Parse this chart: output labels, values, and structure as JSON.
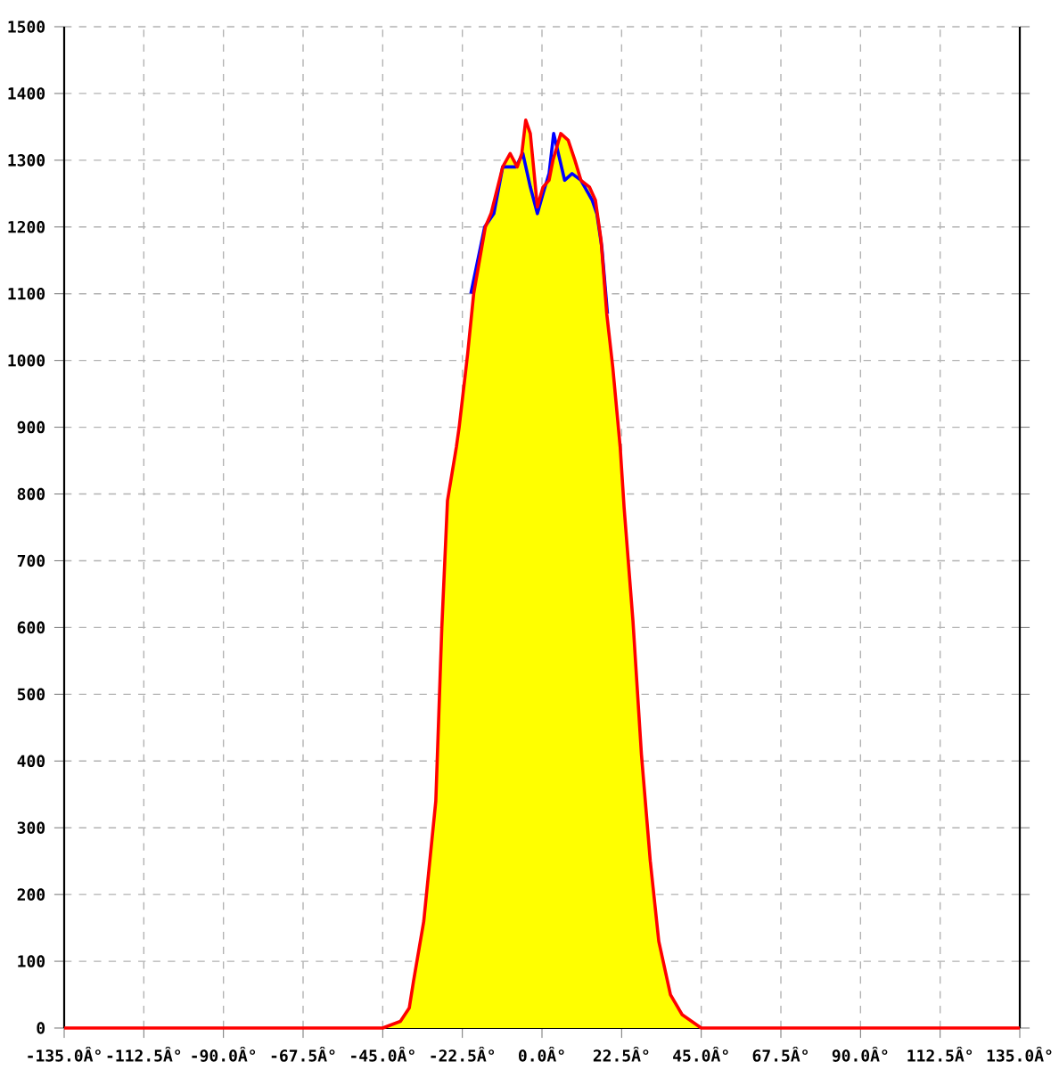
{
  "chart_data": {
    "type": "line",
    "series": [
      {
        "type": "area",
        "color": "#ffff00",
        "x": [
          -45,
          -40,
          -37.5,
          -36.3,
          -33.4,
          -30,
          -28.3,
          -26.7,
          -24.2,
          -23.4,
          -21,
          -19.3,
          -16,
          -14.4,
          -11.1,
          -9,
          -7,
          -5.7,
          -4.6,
          -3.3,
          -1.3,
          0.3,
          2,
          3.1,
          5.3,
          7.4,
          9.3,
          11,
          13.4,
          15.1,
          16.7,
          18.3,
          20,
          22.1,
          23.2,
          25.7,
          28.1,
          30.6,
          33,
          36.3,
          39.6,
          45
        ],
        "values": [
          0,
          10,
          30,
          70,
          160,
          340,
          600,
          790,
          870,
          900,
          1010,
          1100,
          1200,
          1220,
          1290,
          1310,
          1290,
          1310,
          1360,
          1340,
          1230,
          1260,
          1270,
          1300,
          1340,
          1330,
          1300,
          1270,
          1260,
          1240,
          1180,
          1070,
          990,
          870,
          780,
          610,
          410,
          250,
          130,
          50,
          20,
          0
        ]
      },
      {
        "color": "#0000ff",
        "x": [
          -20.1,
          -16.2,
          -13.6,
          -11.1,
          -9.5,
          -7.4,
          -5.4,
          -3.3,
          -1.3,
          0.3,
          2,
          3.3,
          6.4,
          8.5,
          11,
          14.2,
          15.5,
          16.9,
          18.5
        ],
        "values": [
          1100,
          1200,
          1220,
          1290,
          1290,
          1290,
          1310,
          1260,
          1220,
          1250,
          1280,
          1340,
          1270,
          1280,
          1270,
          1240,
          1220,
          1170,
          1070
        ]
      },
      {
        "color": "#ff0000",
        "x": [
          -135,
          -45,
          -40,
          -37.5,
          -36.3,
          -33.4,
          -30,
          -28.3,
          -26.7,
          -24.2,
          -23.4,
          -21,
          -19.3,
          -16,
          -14.4,
          -11.1,
          -9,
          -7,
          -5.7,
          -4.6,
          -3.3,
          -1.3,
          0.3,
          2,
          3.1,
          5.3,
          7.4,
          9.3,
          11,
          13.4,
          15.1,
          16.7,
          18.3,
          20,
          22.1,
          23.2,
          25.7,
          28.1,
          30.6,
          33,
          36.3,
          39.6,
          45,
          135
        ],
        "values": [
          0,
          0,
          10,
          30,
          70,
          160,
          340,
          600,
          790,
          870,
          900,
          1010,
          1100,
          1200,
          1220,
          1290,
          1310,
          1290,
          1310,
          1360,
          1340,
          1230,
          1260,
          1270,
          1300,
          1340,
          1330,
          1300,
          1270,
          1260,
          1240,
          1180,
          1070,
          990,
          870,
          780,
          610,
          410,
          250,
          130,
          50,
          20,
          0,
          0
        ]
      }
    ],
    "xlim": [
      -135,
      135
    ],
    "ylim": [
      0,
      1500
    ],
    "xticks": [
      {
        "value": -135,
        "label": "-135.0Â°"
      },
      {
        "value": -112.5,
        "label": "-112.5Â°"
      },
      {
        "value": -90,
        "label": "-90.0Â°"
      },
      {
        "value": -67.5,
        "label": "-67.5Â°"
      },
      {
        "value": -45,
        "label": "-45.0Â°"
      },
      {
        "value": -22.5,
        "label": "-22.5Â°"
      },
      {
        "value": 0,
        "label": "0.0Â°"
      },
      {
        "value": 22.5,
        "label": "22.5Â°"
      },
      {
        "value": 45,
        "label": "45.0Â°"
      },
      {
        "value": 67.5,
        "label": "67.5Â°"
      },
      {
        "value": 90,
        "label": "90.0Â°"
      },
      {
        "value": 112.5,
        "label": "112.5Â°"
      },
      {
        "value": 135,
        "label": "135.0Â°"
      }
    ],
    "yticks": [
      0,
      100,
      200,
      300,
      400,
      500,
      600,
      700,
      800,
      900,
      1000,
      1100,
      1200,
      1300,
      1400,
      1500
    ],
    "grid": true,
    "marker": "none",
    "line_style": "solid"
  }
}
